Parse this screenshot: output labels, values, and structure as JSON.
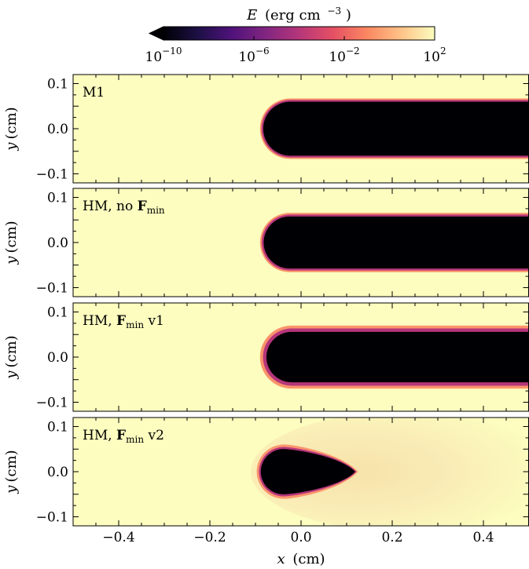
{
  "chart_data": {
    "type": "heatmap",
    "colorbar": {
      "label_var": "E",
      "label_units": "(erg cm",
      "label_exp": "−3",
      "label_close": ")",
      "scale": "log",
      "range": [
        1e-10,
        100
      ],
      "extend": "min",
      "colormap": "magma",
      "ticks": [
        {
          "base": "10",
          "exp": "−10",
          "value": 1e-10
        },
        {
          "base": "10",
          "exp": "−6",
          "value": 1e-06
        },
        {
          "base": "10",
          "exp": "−2",
          "value": 0.01
        },
        {
          "base": "10",
          "exp": "2",
          "value": 100
        }
      ]
    },
    "xaxis": {
      "label_var": "x",
      "label_units": "(cm)",
      "range": [
        -0.5,
        0.5
      ],
      "ticks": [
        {
          "value": -0.4,
          "label": "−0.4"
        },
        {
          "value": -0.2,
          "label": "−0.2"
        },
        {
          "value": 0.0,
          "label": "0.0"
        },
        {
          "value": 0.2,
          "label": "0.2"
        },
        {
          "value": 0.4,
          "label": "0.4"
        }
      ]
    },
    "yaxis": {
      "label_var": "y",
      "label_units": "(cm)",
      "range": [
        -0.12,
        0.12
      ],
      "ticks": [
        {
          "value": 0.1,
          "label": "0.1"
        },
        {
          "value": 0.0,
          "label": "0.0"
        },
        {
          "value": -0.1,
          "label": "−0.1"
        }
      ]
    },
    "background_color": "#fcfdbf",
    "shadow_color": "#000004",
    "panels": [
      {
        "label_pre": "M1",
        "label_bold": "",
        "label_sub": "",
        "label_post": "",
        "shadow": "tube",
        "front_x": -0.09,
        "half_width": 0.062,
        "rim_width": 0.014,
        "glow": 0
      },
      {
        "label_pre": "HM, no ",
        "label_bold": "F",
        "label_sub": "min",
        "label_post": "",
        "shadow": "tube",
        "front_x": -0.09,
        "half_width": 0.06,
        "rim_width": 0.016,
        "glow": 0
      },
      {
        "label_pre": "HM, ",
        "label_bold": "F",
        "label_sub": "min",
        "label_post": " v1",
        "shadow": "tube",
        "front_x": -0.09,
        "half_width": 0.06,
        "rim_width": 0.028,
        "glow": 0
      },
      {
        "label_pre": "HM, ",
        "label_bold": "F",
        "label_sub": "min",
        "label_post": " v2",
        "shadow": "teardrop",
        "front_x": -0.09,
        "tip_x": 0.12,
        "half_width": 0.052,
        "rim_width": 0.018,
        "glow": 1
      }
    ]
  }
}
